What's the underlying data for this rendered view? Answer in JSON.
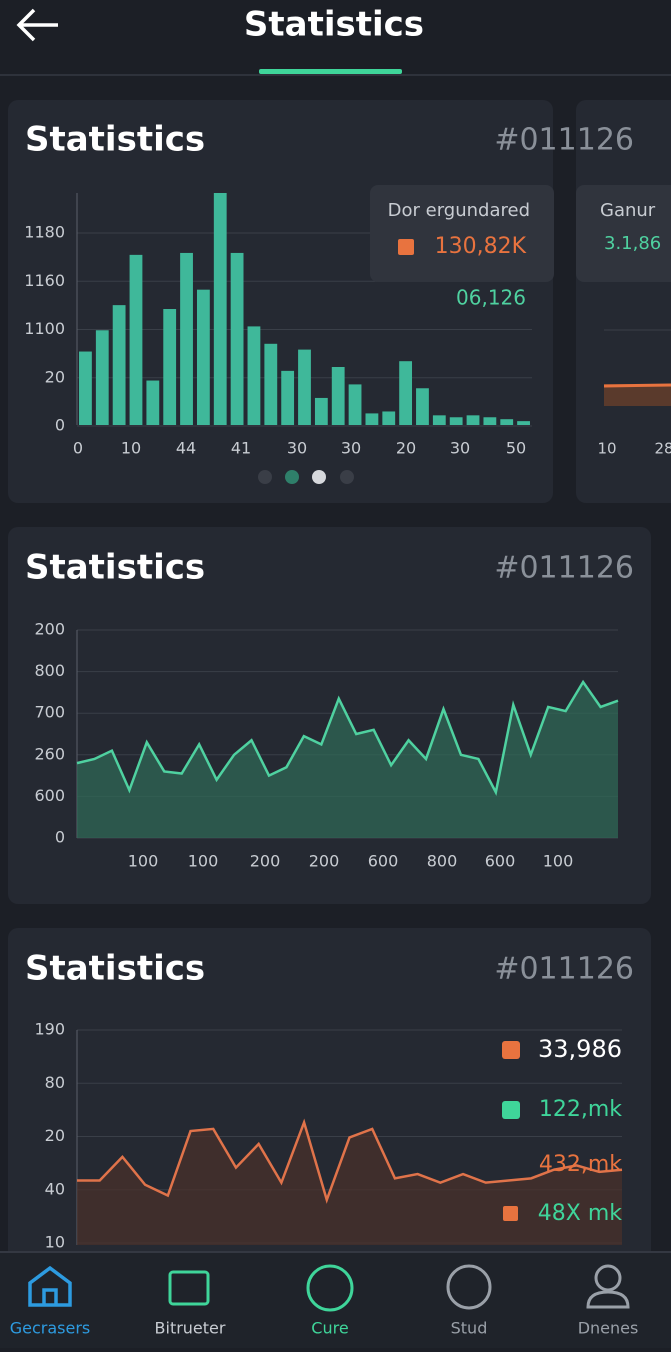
{
  "header": {
    "title": "Statistics"
  },
  "cards": [
    {
      "title": "Statistics",
      "code": "#011126",
      "chart": {
        "type": "bar",
        "color": "#3fb89a",
        "ylim": [
          0,
          120
        ],
        "y_labels": [
          "1180",
          "1160",
          "1100",
          "20",
          "0"
        ],
        "x_labels": [
          "0",
          "10",
          "44",
          "41",
          "30",
          "30",
          "20",
          "30",
          "50"
        ],
        "values": [
          38,
          49,
          62,
          88,
          23,
          60,
          89,
          70,
          120,
          89,
          51,
          42,
          28,
          39,
          14,
          30,
          21,
          6,
          7,
          33,
          19,
          5,
          4,
          5,
          4,
          3,
          2
        ]
      },
      "tooltip": {
        "title": "Dor ergundared",
        "value": "130,82K",
        "sub": "06,126"
      }
    },
    {
      "title": "Statistics",
      "code": "#011126",
      "chart": {
        "type": "area",
        "color": "#4fd1a0",
        "ylim": [
          0,
          100
        ],
        "y_labels": [
          "200",
          "800",
          "700",
          "260",
          "600",
          "0"
        ],
        "x_labels": [
          "100",
          "100",
          "200",
          "200",
          "600",
          "800",
          "600",
          "100"
        ],
        "values": [
          36,
          38,
          42,
          23,
          46,
          32,
          31,
          45,
          28,
          40,
          47,
          30,
          34,
          49,
          45,
          67,
          50,
          52,
          35,
          47,
          38,
          62,
          40,
          38,
          22,
          64,
          40,
          63,
          61,
          75,
          63,
          66
        ]
      }
    },
    {
      "title": "Statistics",
      "code": "#011126",
      "chart": {
        "type": "line",
        "color": "#e0734a",
        "ylim": [
          0,
          100
        ],
        "y_labels": [
          "190",
          "80",
          "20",
          "40",
          "10"
        ],
        "values": [
          30,
          30,
          41,
          28,
          23,
          53,
          54,
          36,
          47,
          29,
          57,
          21,
          50,
          54,
          31,
          33,
          29,
          33,
          29,
          30,
          31,
          35,
          37,
          34,
          35
        ]
      },
      "legend": [
        "33,986",
        "122,mk",
        "432,mk",
        "48X mk"
      ]
    }
  ],
  "side_card": {
    "title": "Ganur",
    "value": "3.1,86",
    "x_labels": [
      "10",
      "28"
    ]
  },
  "nav": [
    "Gecrasers",
    "Bitrueter",
    "Cure",
    "Stud",
    "Dnenes"
  ]
}
